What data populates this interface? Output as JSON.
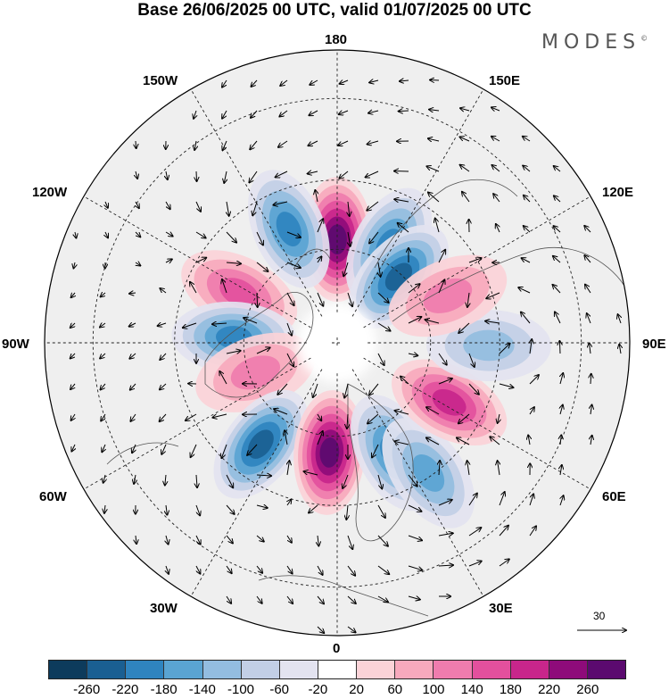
{
  "title": "Base 26/06/2025 00 UTC, valid 01/07/2025 00 UTC",
  "brand": "MODES",
  "brand_mark": "©",
  "longitude_labels": {
    "lon_180": "180",
    "lon_150e": "150E",
    "lon_120e": "120E",
    "lon_90e": "90E",
    "lon_60e": "60E",
    "lon_30e": "30E",
    "lon_0": "0",
    "lon_30w": "30W",
    "lon_60w": "60W",
    "lon_90w": "90W",
    "lon_120w": "120W",
    "lon_150w": "150W"
  },
  "reference_vector": {
    "value": "30"
  },
  "colorbar": {
    "colors": [
      "#0d3b5c",
      "#1a5f92",
      "#2f84bf",
      "#5aa4d2",
      "#93bde0",
      "#c2cfe6",
      "#e3e3f0",
      "#ffffff",
      "#fbd3d8",
      "#f7a9bd",
      "#ef7cae",
      "#e3509d",
      "#c8268b",
      "#8e0b7a",
      "#5b0a6f"
    ],
    "ticks": [
      "-260",
      "-220",
      "-180",
      "-140",
      "-100",
      "-60",
      "-20",
      "20",
      "60",
      "100",
      "140",
      "180",
      "220",
      "260"
    ]
  },
  "anomaly_regions": [
    {
      "sign": "positive",
      "level": 6,
      "lon": 180,
      "lat": 57
    },
    {
      "sign": "negative",
      "level": 4,
      "lon": 152,
      "lat": 55
    },
    {
      "sign": "negative",
      "level": 5,
      "lon": 137,
      "lat": 61
    },
    {
      "sign": "negative",
      "level": 4,
      "lon": -157,
      "lat": 51
    },
    {
      "sign": "positive",
      "level": 3,
      "lon": -117,
      "lat": 55
    },
    {
      "sign": "negative",
      "level": 4,
      "lon": -93,
      "lat": 57
    },
    {
      "sign": "positive",
      "level": 2,
      "lon": -70,
      "lat": 62
    },
    {
      "sign": "negative",
      "level": 5,
      "lon": -37,
      "lat": 50
    },
    {
      "sign": "positive",
      "level": 6,
      "lon": -4,
      "lat": 55
    },
    {
      "sign": "negative",
      "level": 4,
      "lon": 27,
      "lat": 51
    },
    {
      "sign": "negative",
      "level": 3,
      "lon": 35,
      "lat": 41
    },
    {
      "sign": "positive",
      "level": 4,
      "lon": 62,
      "lat": 50
    },
    {
      "sign": "negative",
      "level": 2,
      "lon": 89,
      "lat": 43
    },
    {
      "sign": "positive",
      "level": 2,
      "lon": 113,
      "lat": 52
    }
  ]
}
